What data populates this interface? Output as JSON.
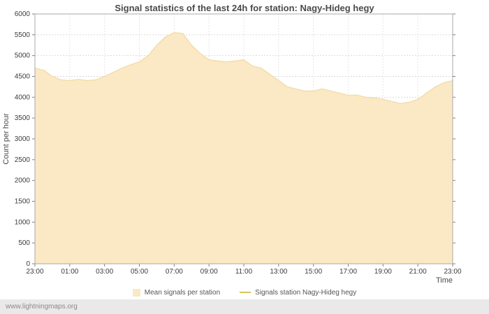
{
  "page": {
    "footer_link": "www.lightningmaps.org"
  },
  "chart_data": {
    "type": "area",
    "title": "Signal statistics of the last 24h for station: Nagy-Hideg hegy",
    "xlabel": "Time",
    "ylabel": "Count per hour",
    "x_start": "23:00",
    "x_interval_minutes": 30,
    "x_tick_labels": [
      "23:00",
      "01:00",
      "03:00",
      "05:00",
      "07:00",
      "09:00",
      "11:00",
      "13:00",
      "15:00",
      "17:00",
      "19:00",
      "21:00",
      "23:00"
    ],
    "ylim": [
      0,
      6000
    ],
    "y_tick_step": 500,
    "grid": true,
    "legend_position": "bottom",
    "series": [
      {
        "name": "Mean signals per station",
        "color": "#fbe9c5",
        "edge_color": "#f1d9a2",
        "values": [
          4700,
          4650,
          4500,
          4420,
          4400,
          4430,
          4400,
          4420,
          4500,
          4600,
          4700,
          4780,
          4850,
          5000,
          5250,
          5450,
          5550,
          5530,
          5250,
          5050,
          4900,
          4870,
          4850,
          4870,
          4900,
          4750,
          4700,
          4550,
          4400,
          4250,
          4200,
          4150,
          4150,
          4200,
          4150,
          4100,
          4050,
          4050,
          4000,
          3980,
          3950,
          3900,
          3850,
          3880,
          3950,
          4100,
          4250,
          4350,
          4400
        ]
      }
    ],
    "legend": [
      {
        "label": "Mean signals per station",
        "type": "area",
        "color": "#fbe9c5"
      },
      {
        "label": "Signals station Nagy-Hideg hegy",
        "type": "line",
        "color": "#d9c35e"
      }
    ]
  }
}
